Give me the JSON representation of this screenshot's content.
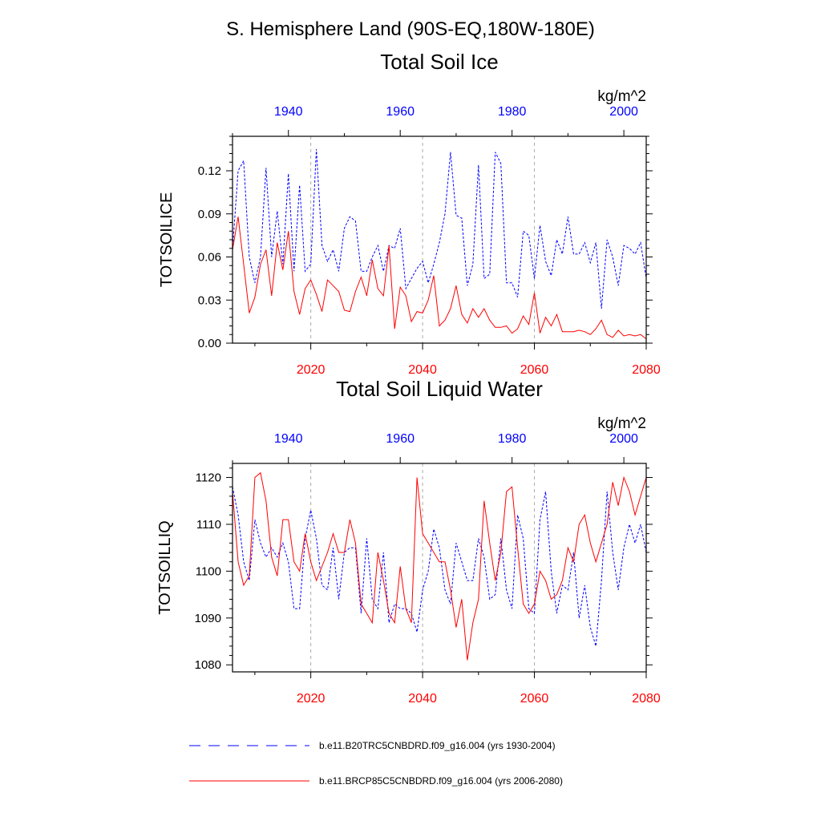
{
  "header": {
    "region_title": "S. Hemisphere Land (90S-EQ,180W-180E)"
  },
  "colors": {
    "historical": "#0000ff",
    "future": "#ff0000",
    "grid": "#aaaaaa",
    "axis": "#000000"
  },
  "chart_data": [
    {
      "type": "line",
      "title": "Total Soil Ice",
      "units": "kg/m^2",
      "ylabel": "TOTSOILICE",
      "ylim": [
        0,
        0.144
      ],
      "yticks": [
        0.0,
        0.03,
        0.06,
        0.09,
        0.12
      ],
      "ytick_labels": [
        "0.00",
        "0.03",
        "0.06",
        "0.09",
        "0.12"
      ],
      "top_xlim": [
        1930,
        2004
      ],
      "top_xticks": [
        1940,
        1960,
        1980,
        2000
      ],
      "bottom_xlim": [
        2006,
        2080
      ],
      "bottom_xticks": [
        2020,
        2040,
        2060,
        2080
      ],
      "vertical_gridlines": [
        2020,
        2040,
        2060
      ],
      "series": [
        {
          "name": "historical",
          "style": "dashed",
          "axis": "top",
          "x_start": 1930,
          "values": [
            0.065,
            0.12,
            0.127,
            0.06,
            0.042,
            0.06,
            0.122,
            0.06,
            0.092,
            0.055,
            0.118,
            0.05,
            0.11,
            0.05,
            0.055,
            0.135,
            0.068,
            0.057,
            0.065,
            0.05,
            0.08,
            0.088,
            0.085,
            0.05,
            0.05,
            0.06,
            0.068,
            0.05,
            0.068,
            0.066,
            0.08,
            0.038,
            0.045,
            0.052,
            0.057,
            0.042,
            0.055,
            0.07,
            0.09,
            0.133,
            0.089,
            0.087,
            0.04,
            0.055,
            0.124,
            0.045,
            0.048,
            0.133,
            0.125,
            0.042,
            0.042,
            0.032,
            0.078,
            0.075,
            0.045,
            0.082,
            0.057,
            0.047,
            0.072,
            0.062,
            0.088,
            0.062,
            0.062,
            0.07,
            0.056,
            0.07,
            0.024,
            0.072,
            0.06,
            0.04,
            0.068,
            0.066,
            0.062,
            0.07,
            0.045
          ]
        },
        {
          "name": "future",
          "style": "solid",
          "axis": "bottom",
          "x_start": 2006,
          "values": [
            0.065,
            0.088,
            0.055,
            0.021,
            0.032,
            0.055,
            0.065,
            0.033,
            0.07,
            0.051,
            0.078,
            0.036,
            0.02,
            0.038,
            0.044,
            0.034,
            0.022,
            0.044,
            0.04,
            0.036,
            0.023,
            0.022,
            0.036,
            0.046,
            0.033,
            0.058,
            0.038,
            0.033,
            0.068,
            0.01,
            0.039,
            0.033,
            0.015,
            0.022,
            0.021,
            0.03,
            0.047,
            0.012,
            0.016,
            0.024,
            0.04,
            0.02,
            0.014,
            0.024,
            0.018,
            0.024,
            0.016,
            0.011,
            0.011,
            0.012,
            0.007,
            0.01,
            0.019,
            0.013,
            0.035,
            0.007,
            0.018,
            0.012,
            0.02,
            0.008,
            0.008,
            0.008,
            0.009,
            0.008,
            0.006,
            0.01,
            0.016,
            0.006,
            0.004,
            0.009,
            0.005,
            0.006,
            0.005,
            0.006,
            0.003
          ]
        }
      ]
    },
    {
      "type": "line",
      "title": "Total Soil Liquid Water",
      "units": "kg/m^2",
      "ylabel": "TOTSOILLIQ",
      "ylim": [
        1078.5,
        1123
      ],
      "yticks": [
        1080,
        1090,
        1100,
        1110,
        1120
      ],
      "ytick_labels": [
        "1080",
        "1090",
        "1100",
        "1110",
        "1120"
      ],
      "top_xlim": [
        1930,
        2004
      ],
      "top_xticks": [
        1940,
        1960,
        1980,
        2000
      ],
      "bottom_xlim": [
        2006,
        2080
      ],
      "bottom_xticks": [
        2020,
        2040,
        2060,
        2080
      ],
      "vertical_gridlines": [
        2020,
        2040,
        2060
      ],
      "series": [
        {
          "name": "historical",
          "style": "dashed",
          "axis": "top",
          "x_start": 1930,
          "values": [
            1118,
            1112,
            1102,
            1098,
            1111,
            1106,
            1103,
            1105,
            1103,
            1106,
            1102,
            1092,
            1092,
            1107,
            1113,
            1107,
            1097,
            1096,
            1105,
            1094,
            1104,
            1105,
            1105,
            1091,
            1107,
            1094,
            1092,
            1104,
            1089,
            1093,
            1092,
            1092,
            1091,
            1087,
            1096,
            1100,
            1109,
            1105,
            1096,
            1093,
            1106,
            1102,
            1098,
            1098,
            1107,
            1103,
            1094,
            1095,
            1107,
            1096,
            1092,
            1112,
            1107,
            1092,
            1091,
            1111,
            1117,
            1100,
            1091,
            1097,
            1096,
            1104,
            1090,
            1097,
            1088,
            1084,
            1098,
            1117,
            1104,
            1096,
            1105,
            1110,
            1106,
            1110,
            1104
          ]
        },
        {
          "name": "future",
          "style": "solid",
          "axis": "bottom",
          "x_start": 2006,
          "values": [
            1117,
            1102,
            1097,
            1099,
            1120,
            1121,
            1115,
            1103,
            1099,
            1111,
            1111,
            1102,
            1100,
            1108,
            1102,
            1098,
            1101,
            1104,
            1108,
            1104,
            1104,
            1111,
            1106,
            1093,
            1091,
            1089,
            1104,
            1098,
            1091,
            1089,
            1101,
            1092,
            1089,
            1120,
            1108,
            1106,
            1104,
            1102,
            1102,
            1096,
            1088,
            1094,
            1081,
            1089,
            1094,
            1115,
            1106,
            1098,
            1104,
            1117,
            1118,
            1105,
            1093,
            1091,
            1093,
            1100,
            1098,
            1094,
            1095,
            1098,
            1105,
            1102,
            1110,
            1112,
            1106,
            1102,
            1106,
            1110,
            1119,
            1114,
            1120,
            1117,
            1112,
            1116,
            1120
          ]
        }
      ]
    }
  ],
  "legend": {
    "items": [
      {
        "series": "historical",
        "label": "b.e11.B20TRC5CNBDRD.f09_g16.004 (yrs 1930-2004)"
      },
      {
        "series": "future",
        "label": "b.e11.BRCP85C5CNBDRD.f09_g16.004 (yrs 2006-2080)"
      }
    ]
  }
}
